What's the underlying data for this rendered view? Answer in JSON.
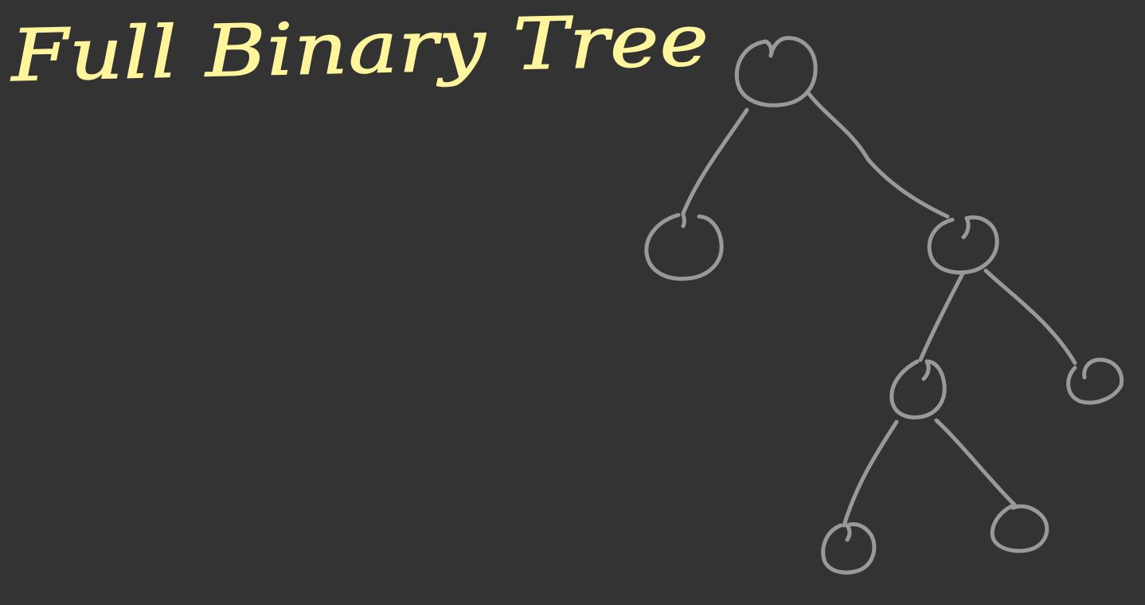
{
  "canvas": {
    "background": "#333333"
  },
  "title": {
    "text": "Full Binary Tree",
    "color": "#FFF59D"
  },
  "tree": {
    "stroke_color": "#999999",
    "nodes": [
      "root",
      "left",
      "right",
      "right-left",
      "right-right",
      "right-left-left",
      "right-left-right"
    ],
    "edges": [
      [
        "root",
        "left"
      ],
      [
        "root",
        "right"
      ],
      [
        "right",
        "right-left"
      ],
      [
        "right",
        "right-right"
      ],
      [
        "right-left",
        "right-left-left"
      ],
      [
        "right-left",
        "right-left-right"
      ]
    ]
  }
}
